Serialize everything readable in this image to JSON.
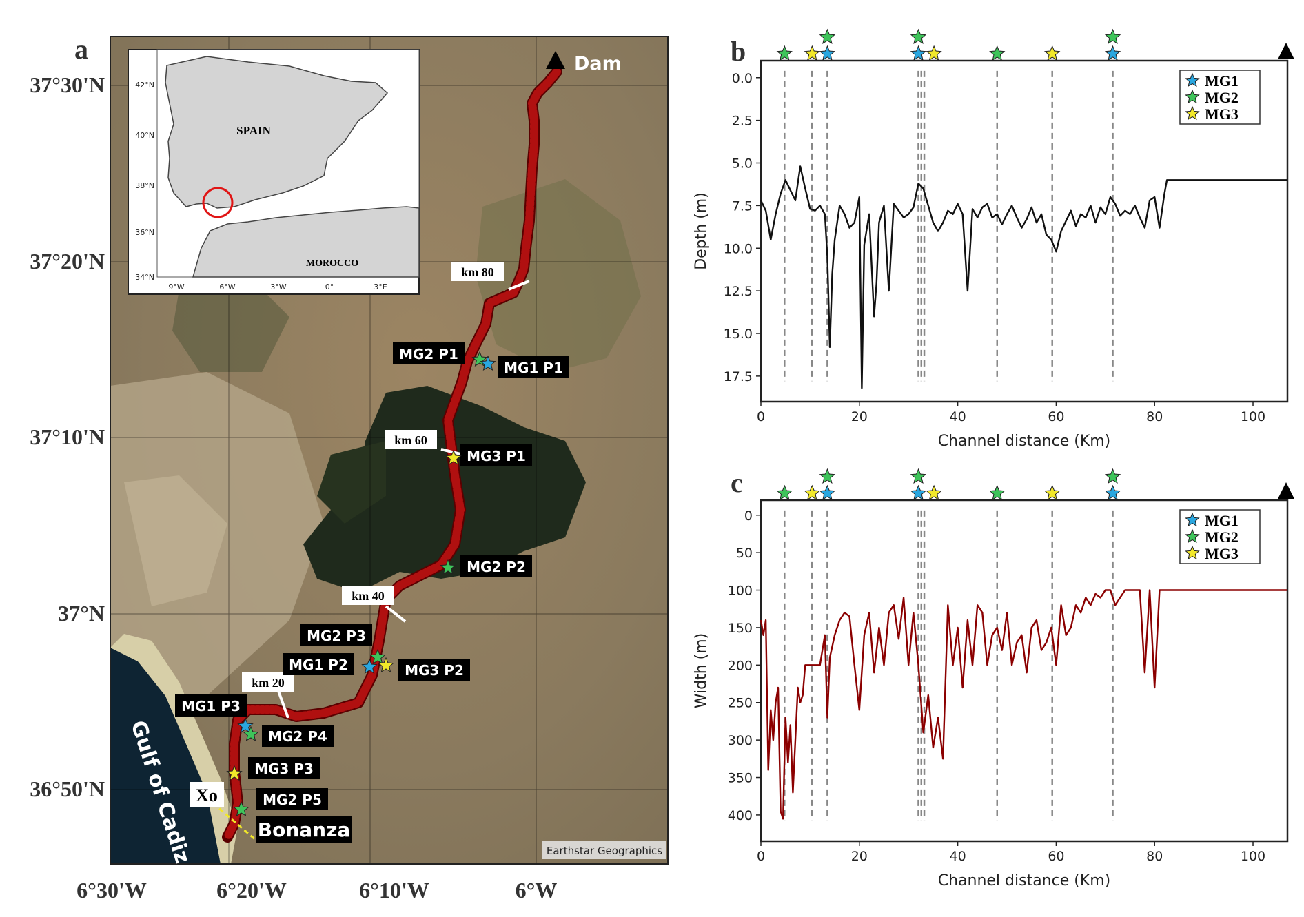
{
  "panel_letters": {
    "a": "a",
    "b": "b",
    "c": "c"
  },
  "map": {
    "lat_labels": [
      "37°30'N",
      "37°20'N",
      "37°10'N",
      "37°N",
      "36°50'N"
    ],
    "lon_labels": [
      "6°30'W",
      "6°20'W",
      "6°10'W",
      "6°W"
    ],
    "dam_label": "Dam",
    "gulf_label": "Gulf of Cadiz",
    "xo_label": "Xo",
    "bonanza_label": "Bonanza",
    "attribution": "Earthstar Geographics",
    "km_labels": [
      "km 80",
      "km 60",
      "km 40",
      "km 20"
    ],
    "stations": [
      {
        "label": "MG2 P1",
        "group": "MG2"
      },
      {
        "label": "MG1 P1",
        "group": "MG1"
      },
      {
        "label": "MG3 P1",
        "group": "MG3"
      },
      {
        "label": "MG2 P2",
        "group": "MG2"
      },
      {
        "label": "MG2 P3",
        "group": "MG2"
      },
      {
        "label": "MG1 P2",
        "group": "MG1"
      },
      {
        "label": "MG3 P2",
        "group": "MG3"
      },
      {
        "label": "MG1 P3",
        "group": "MG1"
      },
      {
        "label": "MG2 P4",
        "group": "MG2"
      },
      {
        "label": "MG3 P3",
        "group": "MG3"
      },
      {
        "label": "MG2 P5",
        "group": "MG2"
      }
    ],
    "inset": {
      "country_labels": [
        "SPAIN",
        "MOROCCO"
      ],
      "lat_ticks": [
        "42°N",
        "40°N",
        "38°N",
        "36°N",
        "34°N"
      ],
      "lon_ticks": [
        "9°W",
        "6°W",
        "3°W",
        "0°",
        "3°E"
      ]
    }
  },
  "colors": {
    "MG1": "#2aa7e0",
    "MG2": "#3ec45a",
    "MG3": "#f2e82a",
    "depth_line": "#111111",
    "width_line": "#8b0000",
    "river_track": "#b01010"
  },
  "station_km": {
    "MG1": [
      13.5,
      32.0,
      71.5
    ],
    "MG2": [
      4.8,
      13.5,
      32.0,
      48.0,
      71.5
    ],
    "MG3": [
      10.4,
      33.2,
      59.2
    ]
  },
  "chart_data": [
    {
      "type": "line",
      "panel": "b",
      "xlabel": "Channel distance (Km)",
      "ylabel": "Depth (m)",
      "xlim": [
        0,
        107
      ],
      "ylim": [
        19.0,
        -1.0
      ],
      "x_ticks": [
        "0",
        "20",
        "40",
        "60",
        "80",
        "100"
      ],
      "y_ticks": [
        "0.0",
        "2.5",
        "5.0",
        "7.5",
        "10.0",
        "12.5",
        "15.0",
        "17.5"
      ],
      "legend": [
        "MG1",
        "MG2",
        "MG3"
      ],
      "vlines": [
        4.8,
        10.4,
        13.5,
        32.0,
        32.6,
        33.2,
        48.0,
        59.2,
        71.5
      ],
      "x": [
        0,
        1,
        2,
        3,
        4,
        5,
        6,
        7,
        8,
        9,
        10,
        11,
        12,
        13,
        13.5,
        14,
        14.5,
        15,
        16,
        17,
        18,
        19,
        20,
        20.5,
        21,
        22,
        23,
        23.5,
        24,
        25,
        26,
        27,
        28,
        29,
        30,
        31,
        32,
        33,
        34,
        35,
        36,
        37,
        38,
        39,
        40,
        41,
        42,
        43,
        44,
        45,
        46,
        47,
        48,
        49,
        50,
        51,
        52,
        53,
        54,
        55,
        56,
        57,
        58,
        59,
        60,
        61,
        62,
        63,
        64,
        65,
        66,
        67,
        68,
        69,
        70,
        71,
        72,
        73,
        74,
        75,
        76,
        77,
        78,
        79,
        80,
        81,
        82,
        82.5,
        90,
        100,
        107
      ],
      "y": [
        7.2,
        7.8,
        9.5,
        8.0,
        6.8,
        6.0,
        6.6,
        7.2,
        5.2,
        6.5,
        7.7,
        7.8,
        7.5,
        8.0,
        10.5,
        15.8,
        11.5,
        9.5,
        7.5,
        8.0,
        8.8,
        8.5,
        7.0,
        18.2,
        9.8,
        8.0,
        14.0,
        12.0,
        8.5,
        7.5,
        12.5,
        7.4,
        7.8,
        8.2,
        8.0,
        7.6,
        6.2,
        6.5,
        7.5,
        8.5,
        9.0,
        8.5,
        7.8,
        8.0,
        7.4,
        8.0,
        12.5,
        7.7,
        8.2,
        7.6,
        7.4,
        8.2,
        8.0,
        8.6,
        8.0,
        7.5,
        8.2,
        8.8,
        8.3,
        7.6,
        8.5,
        8.0,
        9.2,
        9.5,
        10.2,
        9.0,
        8.4,
        7.8,
        8.7,
        8.0,
        8.2,
        7.5,
        8.5,
        7.6,
        8.0,
        7.0,
        7.4,
        8.1,
        7.8,
        8.0,
        7.5,
        8.2,
        8.8,
        7.2,
        7.0,
        8.8,
        6.8,
        6.0,
        6.0,
        6.0,
        6.0
      ]
    },
    {
      "type": "line",
      "panel": "c",
      "xlabel": "Channel distance (Km)",
      "ylabel": "Width (m)",
      "xlim": [
        0,
        107
      ],
      "ylim": [
        435,
        -20
      ],
      "x_ticks": [
        "0",
        "20",
        "40",
        "60",
        "80",
        "100"
      ],
      "y_ticks": [
        "0",
        "50",
        "100",
        "150",
        "200",
        "250",
        "300",
        "350",
        "400"
      ],
      "legend": [
        "MG1",
        "MG2",
        "MG3"
      ],
      "vlines": [
        4.8,
        10.4,
        13.5,
        32.0,
        32.6,
        33.2,
        48.0,
        59.2,
        71.5
      ],
      "x": [
        0,
        0.5,
        1,
        1.5,
        2,
        2.5,
        3,
        3.5,
        4,
        4.5,
        5,
        5.5,
        6,
        6.5,
        7,
        7.5,
        8,
        8.5,
        9,
        9.5,
        10,
        11,
        12,
        13,
        13.5,
        14,
        15,
        16,
        17,
        18,
        19,
        20,
        21,
        22,
        23,
        24,
        25,
        26,
        27,
        28,
        29,
        30,
        31,
        32,
        33,
        34,
        35,
        36,
        37,
        38,
        39,
        40,
        41,
        42,
        43,
        44,
        45,
        46,
        47,
        48,
        49,
        50,
        51,
        52,
        53,
        54,
        55,
        56,
        57,
        58,
        59,
        60,
        61,
        62,
        63,
        64,
        65,
        66,
        67,
        68,
        69,
        70,
        71,
        72,
        73,
        74,
        75,
        76,
        77,
        78,
        79,
        80,
        81,
        82,
        83,
        90,
        100,
        107
      ],
      "y": [
        140,
        160,
        140,
        340,
        260,
        300,
        250,
        230,
        395,
        405,
        270,
        330,
        280,
        370,
        300,
        230,
        250,
        240,
        200,
        200,
        200,
        200,
        200,
        160,
        270,
        190,
        160,
        140,
        130,
        135,
        200,
        260,
        160,
        130,
        210,
        150,
        200,
        130,
        120,
        165,
        110,
        200,
        130,
        200,
        290,
        240,
        310,
        270,
        325,
        120,
        200,
        150,
        230,
        140,
        200,
        120,
        130,
        200,
        160,
        150,
        180,
        130,
        200,
        170,
        160,
        210,
        150,
        140,
        180,
        170,
        150,
        200,
        120,
        160,
        150,
        120,
        130,
        110,
        120,
        105,
        110,
        100,
        100,
        120,
        110,
        100,
        100,
        100,
        100,
        210,
        100,
        230,
        100,
        100,
        100,
        100,
        100,
        100
      ]
    }
  ]
}
